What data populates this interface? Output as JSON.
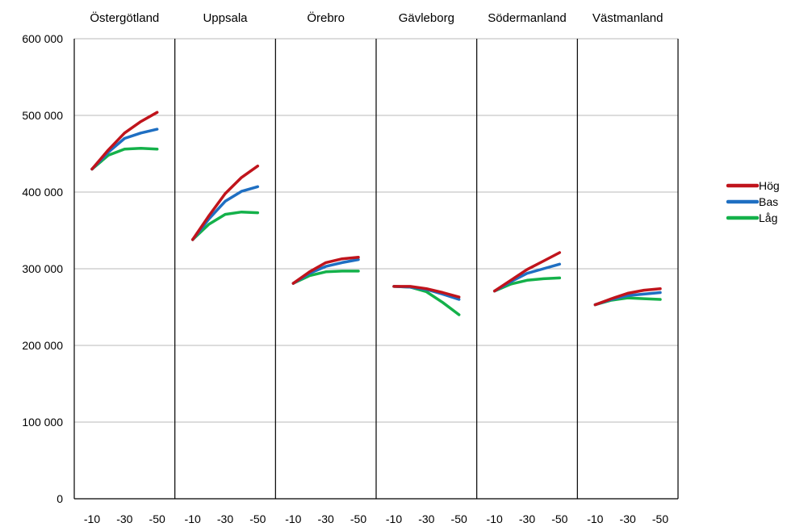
{
  "chart_data": {
    "type": "line",
    "y_ticks": [
      "0",
      "100 000",
      "200 000",
      "300 000",
      "400 000",
      "500 000",
      "600 000"
    ],
    "ylim": [
      0,
      600000
    ],
    "grid": true,
    "legend_position": "right",
    "x_tick_labels": [
      "-10",
      "-30",
      "-50"
    ],
    "x": [
      -10,
      -20,
      -30,
      -40,
      -50
    ],
    "series_names": [
      "Hög",
      "Bas",
      "Låg"
    ],
    "colors": {
      "Hög": "#c0141c",
      "Bas": "#1f6fc2",
      "Låg": "#14b14a"
    },
    "panels": [
      {
        "title": "Östergötland",
        "series": [
          {
            "name": "Hög",
            "values": [
              430000,
              455000,
              477000,
              492000,
              504000
            ]
          },
          {
            "name": "Bas",
            "values": [
              430000,
              452000,
              470000,
              477000,
              482000
            ]
          },
          {
            "name": "Låg",
            "values": [
              430000,
              448000,
              456000,
              457000,
              456000
            ]
          }
        ]
      },
      {
        "title": "Uppsala",
        "series": [
          {
            "name": "Hög",
            "values": [
              338000,
              369000,
              398000,
              419000,
              434000
            ]
          },
          {
            "name": "Bas",
            "values": [
              338000,
              365000,
              388000,
              401000,
              407000
            ]
          },
          {
            "name": "Låg",
            "values": [
              338000,
              358000,
              371000,
              374000,
              373000
            ]
          }
        ]
      },
      {
        "title": "Örebro",
        "series": [
          {
            "name": "Hög",
            "values": [
              281000,
              296000,
              308000,
              313000,
              315000
            ]
          },
          {
            "name": "Bas",
            "values": [
              281000,
              294000,
              303000,
              308000,
              312000
            ]
          },
          {
            "name": "Låg",
            "values": [
              281000,
              291000,
              296000,
              297000,
              297000
            ]
          }
        ]
      },
      {
        "title": "Gävleborg",
        "series": [
          {
            "name": "Hög",
            "values": [
              277000,
              277000,
              274000,
              269000,
              263000
            ]
          },
          {
            "name": "Bas",
            "values": [
              277000,
              276000,
              273000,
              267000,
              260000
            ]
          },
          {
            "name": "Låg",
            "values": [
              277000,
              276000,
              270000,
              256000,
              240000
            ]
          }
        ]
      },
      {
        "title": "Södermanland",
        "series": [
          {
            "name": "Hög",
            "values": [
              271000,
              285000,
              299000,
              310000,
              321000
            ]
          },
          {
            "name": "Bas",
            "values": [
              271000,
              283000,
              294000,
              300000,
              306000
            ]
          },
          {
            "name": "Låg",
            "values": [
              271000,
              280000,
              285000,
              287000,
              288000
            ]
          }
        ]
      },
      {
        "title": "Västmanland",
        "series": [
          {
            "name": "Hög",
            "values": [
              253000,
              261000,
              268000,
              272000,
              274000
            ]
          },
          {
            "name": "Bas",
            "values": [
              253000,
              260000,
              265000,
              267000,
              269000
            ]
          },
          {
            "name": "Låg",
            "values": [
              253000,
              259000,
              262000,
              261000,
              260000
            ]
          }
        ]
      }
    ]
  }
}
